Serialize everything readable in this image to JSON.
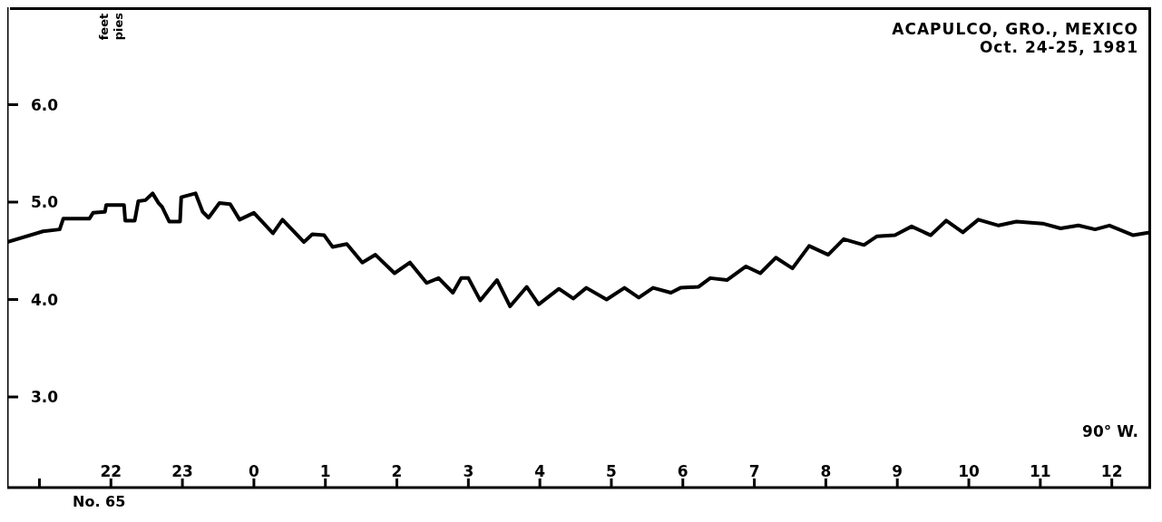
{
  "chart_data": {
    "type": "line",
    "title": "ACAPULCO, GRO., MEXICO",
    "subtitle": "Oct. 24-25, 1981",
    "ylabel": "feet pies",
    "annotations": [
      "90° W.",
      "No. 65"
    ],
    "x": [
      "1981-10-24T20:33",
      "1981-10-24T21:03",
      "1981-10-24T21:17",
      "1981-10-24T21:20",
      "1981-10-24T21:42",
      "1981-10-24T21:45",
      "1981-10-24T21:55",
      "1981-10-24T21:56",
      "1981-10-24T22:11",
      "1981-10-24T22:12",
      "1981-10-24T22:20",
      "1981-10-24T22:23",
      "1981-10-24T22:29",
      "1981-10-24T22:35",
      "1981-10-24T22:40",
      "1981-10-24T22:43",
      "1981-10-24T22:49",
      "1981-10-24T22:58",
      "1981-10-24T22:59",
      "1981-10-24T23:11",
      "1981-10-24T23:17",
      "1981-10-24T23:22",
      "1981-10-24T23:31",
      "1981-10-24T23:40",
      "1981-10-24T23:48",
      "1981-10-25T00:00",
      "1981-10-25T00:16",
      "1981-10-25T00:24",
      "1981-10-25T00:42",
      "1981-10-25T00:49",
      "1981-10-25T00:59",
      "1981-10-25T01:06",
      "1981-10-25T01:18",
      "1981-10-25T01:31",
      "1981-10-25T01:42",
      "1981-10-25T01:58",
      "1981-10-25T02:11",
      "1981-10-25T02:25",
      "1981-10-25T02:35",
      "1981-10-25T02:47",
      "1981-10-25T02:54",
      "1981-10-25T03:00",
      "1981-10-25T03:10",
      "1981-10-25T03:24",
      "1981-10-25T03:35",
      "1981-10-25T03:49",
      "1981-10-25T03:59",
      "1981-10-25T04:16",
      "1981-10-25T04:28",
      "1981-10-25T04:39",
      "1981-10-25T04:56",
      "1981-10-25T05:11",
      "1981-10-25T05:23",
      "1981-10-25T05:35",
      "1981-10-25T05:50",
      "1981-10-25T05:58",
      "1981-10-25T06:13",
      "1981-10-25T06:23",
      "1981-10-25T06:37",
      "1981-10-25T06:53",
      "1981-10-25T07:05",
      "1981-10-25T07:18",
      "1981-10-25T07:32",
      "1981-10-25T07:46",
      "1981-10-25T08:02",
      "1981-10-25T08:15",
      "1981-10-25T08:32",
      "1981-10-25T08:43",
      "1981-10-25T08:58",
      "1981-10-25T09:12",
      "1981-10-25T09:28",
      "1981-10-25T09:41",
      "1981-10-25T09:55",
      "1981-10-25T10:08",
      "1981-10-25T10:25",
      "1981-10-25T10:40",
      "1981-10-25T11:02",
      "1981-10-25T11:17",
      "1981-10-25T11:32",
      "1981-10-25T11:46",
      "1981-10-25T11:58",
      "1981-10-25T12:18",
      "1981-10-25T12:33"
    ],
    "series": [
      {
        "color": "#000000",
        "values": [
          4.59,
          4.7,
          4.72,
          4.83,
          4.83,
          4.89,
          4.9,
          4.97,
          4.97,
          4.81,
          4.81,
          5.01,
          5.02,
          5.09,
          4.99,
          4.95,
          4.8,
          4.8,
          5.05,
          5.09,
          4.9,
          4.84,
          4.99,
          4.98,
          4.82,
          4.89,
          4.68,
          4.82,
          4.59,
          4.67,
          4.66,
          4.54,
          4.57,
          4.38,
          4.46,
          4.27,
          4.38,
          4.17,
          4.22,
          4.07,
          4.22,
          4.22,
          3.99,
          4.2,
          3.93,
          4.13,
          3.95,
          4.11,
          4.01,
          4.12,
          4.0,
          4.12,
          4.02,
          4.12,
          4.07,
          4.12,
          4.13,
          4.22,
          4.2,
          4.34,
          4.27,
          4.43,
          4.32,
          4.55,
          4.46,
          4.62,
          4.56,
          4.65,
          4.66,
          4.75,
          4.66,
          4.81,
          4.69,
          4.82,
          4.76,
          4.8,
          4.78,
          4.73,
          4.76,
          4.72,
          4.76,
          4.66,
          4.69
        ]
      }
    ],
    "xlim": [
      "1981-10-24T20:33",
      "1981-10-25T12:33"
    ],
    "xticks": [
      {
        "value": "1981-10-24T21:00",
        "label": null
      },
      {
        "value": "1981-10-24T22:00",
        "label": "22"
      },
      {
        "value": "1981-10-24T23:00",
        "label": "23"
      },
      {
        "value": "1981-10-25T00:00",
        "label": "0"
      },
      {
        "value": "1981-10-25T01:00",
        "label": "1"
      },
      {
        "value": "1981-10-25T02:00",
        "label": "2"
      },
      {
        "value": "1981-10-25T03:00",
        "label": "3"
      },
      {
        "value": "1981-10-25T04:00",
        "label": "4"
      },
      {
        "value": "1981-10-25T05:00",
        "label": "5"
      },
      {
        "value": "1981-10-25T06:00",
        "label": "6"
      },
      {
        "value": "1981-10-25T07:00",
        "label": "7"
      },
      {
        "value": "1981-10-25T08:00",
        "label": "8"
      },
      {
        "value": "1981-10-25T09:00",
        "label": "9"
      },
      {
        "value": "1981-10-25T10:00",
        "label": "10"
      },
      {
        "value": "1981-10-25T11:00",
        "label": "11"
      },
      {
        "value": "1981-10-25T12:00",
        "label": "12"
      }
    ],
    "ylim": [
      2.07,
      7.0
    ],
    "yticks": [
      {
        "value": 3,
        "label": "3.0"
      },
      {
        "value": 4,
        "label": "4.0"
      },
      {
        "value": 5,
        "label": "5.0"
      },
      {
        "value": 6,
        "label": "6.0"
      }
    ],
    "grid": false,
    "legend": false,
    "marker": "none",
    "line_style": "solid"
  }
}
